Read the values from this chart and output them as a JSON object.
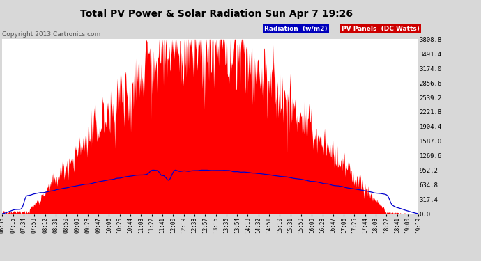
{
  "title": "Total PV Power & Solar Radiation Sun Apr 7 19:26",
  "copyright": "Copyright 2013 Cartronics.com",
  "background_color": "#d8d8d8",
  "plot_bg_color": "#ffffff",
  "y_ticks": [
    0.0,
    317.4,
    634.8,
    952.2,
    1269.6,
    1587.0,
    1904.4,
    2221.8,
    2539.2,
    2856.6,
    3174.0,
    3491.4,
    3808.8
  ],
  "y_max": 3808.8,
  "pv_color": "#ff0000",
  "rad_color": "#0000cc",
  "x_labels": [
    "06:36",
    "07:15",
    "07:34",
    "07:53",
    "08:12",
    "08:31",
    "08:50",
    "09:09",
    "09:28",
    "09:47",
    "10:06",
    "10:25",
    "10:44",
    "11:03",
    "11:22",
    "11:41",
    "12:00",
    "12:19",
    "12:38",
    "12:57",
    "13:16",
    "13:35",
    "13:54",
    "14:13",
    "14:32",
    "14:51",
    "15:10",
    "15:31",
    "15:50",
    "16:09",
    "16:28",
    "16:47",
    "17:06",
    "17:25",
    "17:44",
    "18:03",
    "18:22",
    "18:41",
    "19:00",
    "19:19"
  ],
  "fig_width": 6.9,
  "fig_height": 3.75,
  "dpi": 100
}
